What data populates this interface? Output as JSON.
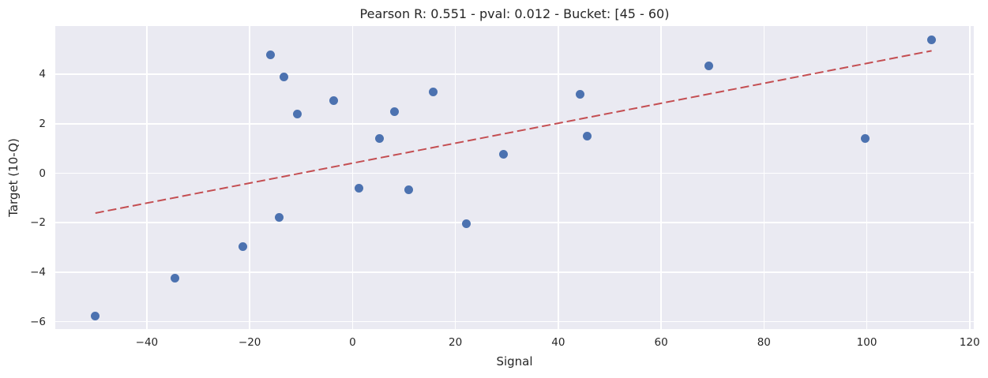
{
  "chart_data": {
    "type": "scatter",
    "title": "Pearson R: 0.551 - pval: 0.012 - Bucket: [45 - 60)",
    "xlabel": "Signal",
    "ylabel": "Target (10-Q)",
    "xlim": [
      -57.8,
      120.8
    ],
    "ylim": [
      -6.3,
      5.95
    ],
    "xticks": [
      -40,
      -20,
      0,
      20,
      40,
      60,
      80,
      100,
      120
    ],
    "yticks": [
      -6,
      -4,
      -2,
      0,
      2,
      4
    ],
    "grid": true,
    "legend": false,
    "points": [
      [
        -50,
        -5.78
      ],
      [
        -34.5,
        -4.24
      ],
      [
        -21.4,
        -2.97
      ],
      [
        -15.9,
        4.78
      ],
      [
        -14.3,
        -1.8
      ],
      [
        -13.3,
        3.9
      ],
      [
        -10.7,
        2.4
      ],
      [
        -3.6,
        2.92
      ],
      [
        1.3,
        -0.59
      ],
      [
        5.3,
        1.42
      ],
      [
        8.2,
        2.5
      ],
      [
        10.9,
        -0.68
      ],
      [
        15.7,
        3.3
      ],
      [
        22.2,
        -2.03
      ],
      [
        29.3,
        0.77
      ],
      [
        44.2,
        3.2
      ],
      [
        45.6,
        1.51
      ],
      [
        69.3,
        4.33
      ],
      [
        99.7,
        1.41
      ],
      [
        112.6,
        5.4
      ]
    ],
    "trendline": {
      "style": "dashed",
      "x1": -50,
      "y1": -1.61,
      "x2": 112.6,
      "y2": 4.95
    },
    "stats": {
      "pearson_r": 0.551,
      "pval": 0.012,
      "bucket": "[45 - 60)"
    },
    "colors": {
      "plot_background": "#eaeaf2",
      "grid": "#ffffff",
      "point": "#4c72b0",
      "trend": "#c44e52",
      "text": "#262626"
    }
  }
}
